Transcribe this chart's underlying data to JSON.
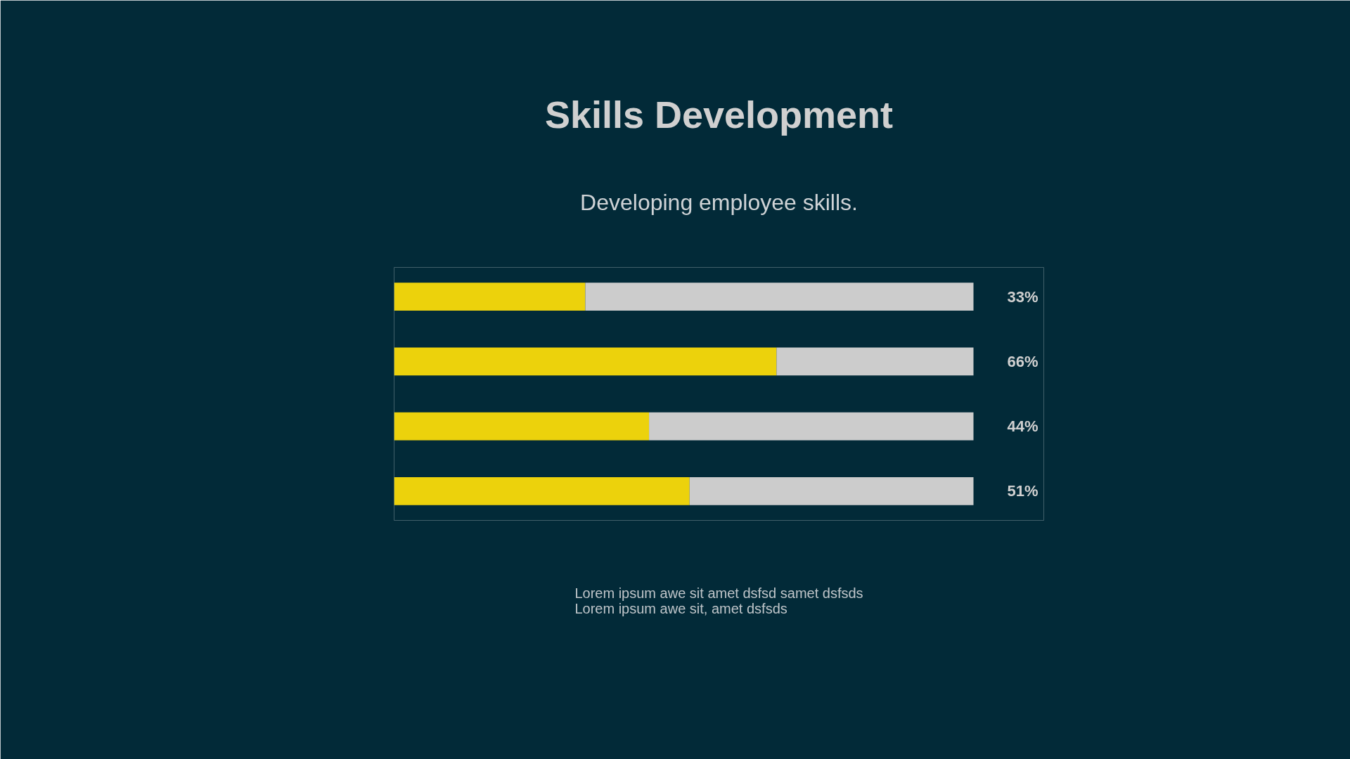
{
  "chart_data": {
    "type": "bar",
    "orientation": "horizontal",
    "stacked": true,
    "title": "Skills Development",
    "subtitle": "Developing employee skills.",
    "categories": [
      null,
      null,
      null,
      null
    ],
    "series": [
      {
        "color": "#ecd20c",
        "values": [
          33,
          66,
          44,
          51
        ],
        "value_labels": [
          "33%",
          "66%",
          "44%",
          "51%"
        ]
      },
      {
        "color": "#cccccc",
        "values": [
          67,
          34,
          56,
          49
        ]
      }
    ],
    "tick_labels": false,
    "grid": false,
    "annotations": [
      "Lorem ipsum awe sit amet dsfsd samet dsfsds",
      "Lorem ipsum awe sit, amet dsfsds"
    ]
  }
}
